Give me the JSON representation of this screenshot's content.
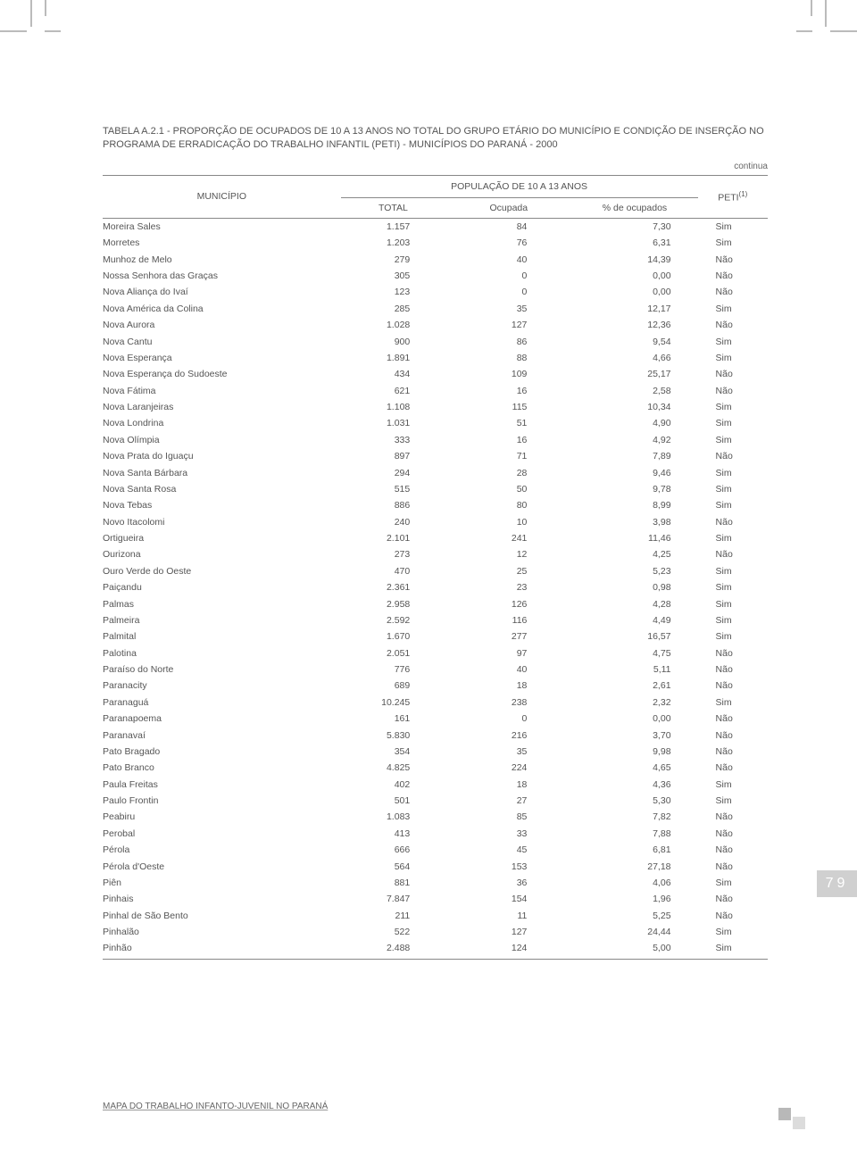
{
  "title_label": "TABELA A.2.1 - ",
  "title_desc": "PROPORÇÃO DE OCUPADOS DE 10 A 13 ANOS NO TOTAL DO GRUPO ETÁRIO DO MUNICÍPIO E CONDIÇÃO DE INSERÇÃO NO PROGRAMA DE ERRADICAÇÃO DO TRABALHO INFANTIL (PETI) - MUNICÍPIOS DO PARANÁ - 2000",
  "continua": "continua",
  "headers": {
    "municipio": "MUNICÍPIO",
    "pop_group": "POPULAÇÃO DE 10 A 13 ANOS",
    "peti": "PETI",
    "peti_sup": "(1)",
    "total": "TOTAL",
    "ocupada": "Ocupada",
    "pct": "% de ocupados"
  },
  "rows": [
    [
      "Moreira Sales",
      "1.157",
      "84",
      "7,30",
      "Sim"
    ],
    [
      "Morretes",
      "1.203",
      "76",
      "6,31",
      "Sim"
    ],
    [
      "Munhoz de Melo",
      "279",
      "40",
      "14,39",
      "Não"
    ],
    [
      "Nossa Senhora das Graças",
      "305",
      "0",
      "0,00",
      "Não"
    ],
    [
      "Nova Aliança do Ivaí",
      "123",
      "0",
      "0,00",
      "Não"
    ],
    [
      "Nova América da Colina",
      "285",
      "35",
      "12,17",
      "Sim"
    ],
    [
      "Nova Aurora",
      "1.028",
      "127",
      "12,36",
      "Não"
    ],
    [
      "Nova Cantu",
      "900",
      "86",
      "9,54",
      "Sim"
    ],
    [
      "Nova Esperança",
      "1.891",
      "88",
      "4,66",
      "Sim"
    ],
    [
      "Nova Esperança do Sudoeste",
      "434",
      "109",
      "25,17",
      "Não"
    ],
    [
      "Nova Fátima",
      "621",
      "16",
      "2,58",
      "Não"
    ],
    [
      "Nova Laranjeiras",
      "1.108",
      "115",
      "10,34",
      "Sim"
    ],
    [
      "Nova Londrina",
      "1.031",
      "51",
      "4,90",
      "Sim"
    ],
    [
      "Nova Olímpia",
      "333",
      "16",
      "4,92",
      "Sim"
    ],
    [
      "Nova Prata do Iguaçu",
      "897",
      "71",
      "7,89",
      "Não"
    ],
    [
      "Nova Santa Bárbara",
      "294",
      "28",
      "9,46",
      "Sim"
    ],
    [
      "Nova Santa Rosa",
      "515",
      "50",
      "9,78",
      "Sim"
    ],
    [
      "Nova Tebas",
      "886",
      "80",
      "8,99",
      "Sim"
    ],
    [
      "Novo Itacolomi",
      "240",
      "10",
      "3,98",
      "Não"
    ],
    [
      "Ortigueira",
      "2.101",
      "241",
      "11,46",
      "Sim"
    ],
    [
      "Ourizona",
      "273",
      "12",
      "4,25",
      "Não"
    ],
    [
      "Ouro Verde do Oeste",
      "470",
      "25",
      "5,23",
      "Sim"
    ],
    [
      "Paiçandu",
      "2.361",
      "23",
      "0,98",
      "Sim"
    ],
    [
      "Palmas",
      "2.958",
      "126",
      "4,28",
      "Sim"
    ],
    [
      "Palmeira",
      "2.592",
      "116",
      "4,49",
      "Sim"
    ],
    [
      "Palmital",
      "1.670",
      "277",
      "16,57",
      "Sim"
    ],
    [
      "Palotina",
      "2.051",
      "97",
      "4,75",
      "Não"
    ],
    [
      "Paraíso do Norte",
      "776",
      "40",
      "5,11",
      "Não"
    ],
    [
      "Paranacity",
      "689",
      "18",
      "2,61",
      "Não"
    ],
    [
      "Paranaguá",
      "10.245",
      "238",
      "2,32",
      "Sim"
    ],
    [
      "Paranapoema",
      "161",
      "0",
      "0,00",
      "Não"
    ],
    [
      "Paranavaí",
      "5.830",
      "216",
      "3,70",
      "Não"
    ],
    [
      "Pato Bragado",
      "354",
      "35",
      "9,98",
      "Não"
    ],
    [
      "Pato Branco",
      "4.825",
      "224",
      "4,65",
      "Não"
    ],
    [
      "Paula Freitas",
      "402",
      "18",
      "4,36",
      "Sim"
    ],
    [
      "Paulo Frontin",
      "501",
      "27",
      "5,30",
      "Sim"
    ],
    [
      "Peabiru",
      "1.083",
      "85",
      "7,82",
      "Não"
    ],
    [
      "Perobal",
      "413",
      "33",
      "7,88",
      "Não"
    ],
    [
      "Pérola",
      "666",
      "45",
      "6,81",
      "Não"
    ],
    [
      "Pérola d'Oeste",
      "564",
      "153",
      "27,18",
      "Não"
    ],
    [
      "Piên",
      "881",
      "36",
      "4,06",
      "Sim"
    ],
    [
      "Pinhais",
      "7.847",
      "154",
      "1,96",
      "Não"
    ],
    [
      "Pinhal de São Bento",
      "211",
      "11",
      "5,25",
      "Não"
    ],
    [
      "Pinhalão",
      "522",
      "127",
      "24,44",
      "Sim"
    ],
    [
      "Pinhão",
      "2.488",
      "124",
      "5,00",
      "Sim"
    ]
  ],
  "footer": "MAPA DO TRABALHO INFANTO-JUVENIL NO PARANÁ",
  "page_number": "79"
}
